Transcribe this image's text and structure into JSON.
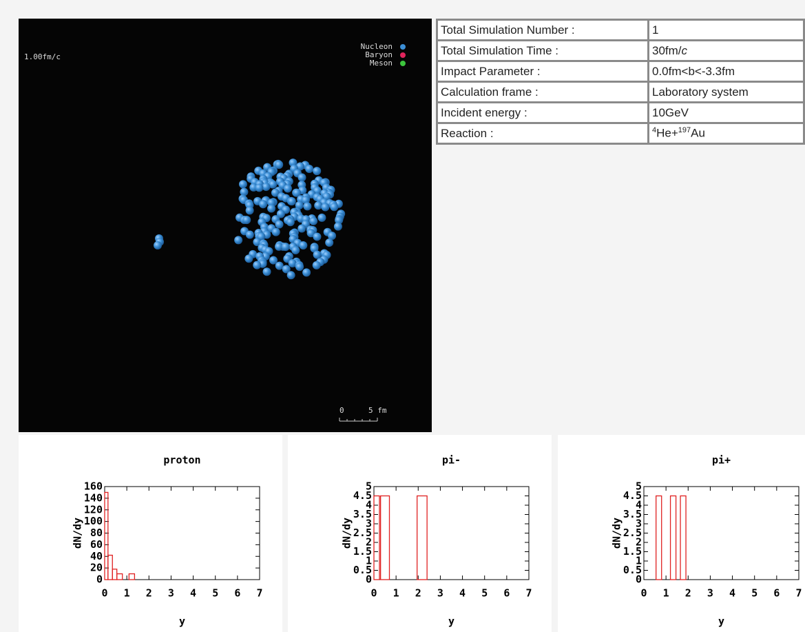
{
  "simulation": {
    "time_label": "1.00fm/c",
    "legend": [
      {
        "name": "Nucleon",
        "color": "#3c8fd6"
      },
      {
        "name": "Baryon",
        "color": "#e0245c"
      },
      {
        "name": "Meson",
        "color": "#3cc43c"
      }
    ],
    "scale_labels": [
      "0",
      "5 fm"
    ]
  },
  "table": {
    "rows": [
      [
        "Total Simulation Number :",
        "1"
      ],
      [
        "Total Simulation Time :",
        [
          "30fm/",
          {
            "i": "c"
          }
        ]
      ],
      [
        "Impact Parameter :",
        "0.0fm<b<-3.3fm"
      ],
      [
        "Calculation frame :",
        "Laboratory system"
      ],
      [
        "Incident energy :",
        "10GeV"
      ],
      [
        "Reaction :",
        [
          {
            "sup": "4"
          },
          "He+",
          {
            "sup": "197"
          },
          "Au"
        ]
      ]
    ]
  },
  "chart_data": [
    {
      "type": "histogram",
      "title": "proton",
      "x_label": "y",
      "y_label": "dN/dy",
      "color": "#e02020",
      "bins": [
        0,
        0.15,
        0.35,
        0.55,
        0.8,
        1.1,
        1.35
      ],
      "values": [
        150,
        42,
        18,
        10,
        0,
        10
      ],
      "xlim": [
        0,
        7
      ],
      "xticks": [
        0,
        1,
        2,
        3,
        4,
        5,
        6,
        7
      ],
      "ylim": [
        0,
        160
      ],
      "yticks": [
        0,
        20,
        40,
        60,
        80,
        100,
        120,
        140,
        160
      ]
    },
    {
      "type": "histogram",
      "title": "pi-",
      "x_label": "y",
      "y_label": "dN/dy",
      "color": "#e02020",
      "bins": [
        0,
        0.25,
        0.3,
        0.7,
        1.95,
        2.4
      ],
      "values": [
        4.5,
        0,
        4.5,
        0,
        4.5
      ],
      "xlim": [
        0,
        7
      ],
      "xticks": [
        0,
        1,
        2,
        3,
        4,
        5,
        6,
        7
      ],
      "ylim": [
        0,
        5
      ],
      "yticks": [
        0,
        0.5,
        1,
        1.5,
        2,
        2.5,
        3,
        3.5,
        4,
        4.5,
        5
      ]
    },
    {
      "type": "histogram",
      "title": "pi+",
      "x_label": "y",
      "y_label": "dN/dy",
      "color": "#e02020",
      "bins": [
        0.55,
        0.8,
        1.2,
        1.45,
        1.65,
        1.9
      ],
      "values": [
        4.5,
        0,
        4.5,
        0,
        4.5
      ],
      "xlim": [
        0,
        7
      ],
      "xticks": [
        0,
        1,
        2,
        3,
        4,
        5,
        6,
        7
      ],
      "ylim": [
        0,
        5
      ],
      "yticks": [
        0,
        0.5,
        1,
        1.5,
        2,
        2.5,
        3,
        3.5,
        4,
        4.5,
        5
      ]
    }
  ]
}
